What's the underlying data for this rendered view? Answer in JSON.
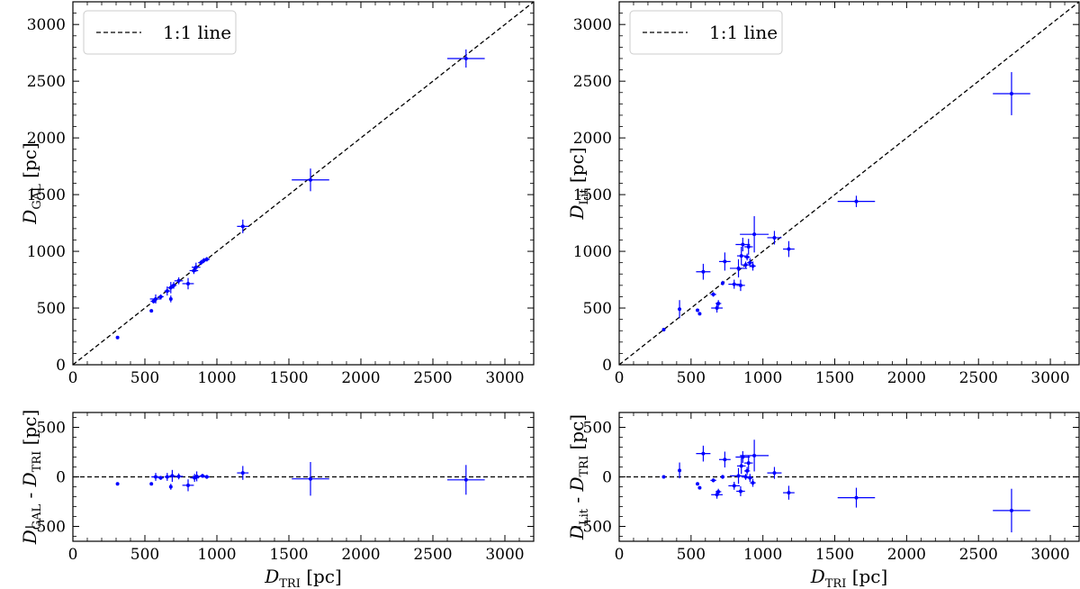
{
  "chart_data": [
    {
      "type": "scatter",
      "panel": "top-left",
      "xlim": [
        0,
        3200
      ],
      "ylim": [
        0,
        3200
      ],
      "xticks": [
        0,
        500,
        1000,
        1500,
        2000,
        2500,
        3000
      ],
      "yticks": [
        0,
        500,
        1000,
        1500,
        2000,
        2500,
        3000
      ],
      "xlabel": "",
      "ylabel": {
        "main": "D",
        "sub": "GAL",
        "unit": " [pc]"
      },
      "reference_line": {
        "label": "1:1 line",
        "style": "dashed",
        "slope": 1
      },
      "legend": "top-left",
      "color": "#0000ff",
      "points": [
        {
          "x": 310,
          "y": 240,
          "xerr": 5,
          "yerr": 5
        },
        {
          "x": 545,
          "y": 475,
          "xerr": 5,
          "yerr": 5
        },
        {
          "x": 560,
          "y": 560,
          "xerr": 20,
          "yerr": 20
        },
        {
          "x": 575,
          "y": 580,
          "xerr": 40,
          "yerr": 40
        },
        {
          "x": 610,
          "y": 600,
          "xerr": 20,
          "yerr": 20
        },
        {
          "x": 655,
          "y": 650,
          "xerr": 20,
          "yerr": 40
        },
        {
          "x": 680,
          "y": 580,
          "xerr": 10,
          "yerr": 30
        },
        {
          "x": 680,
          "y": 680,
          "xerr": 20,
          "yerr": 50
        },
        {
          "x": 700,
          "y": 700,
          "xerr": 20,
          "yerr": 30
        },
        {
          "x": 735,
          "y": 740,
          "xerr": 30,
          "yerr": 30
        },
        {
          "x": 800,
          "y": 715,
          "xerr": 40,
          "yerr": 50
        },
        {
          "x": 840,
          "y": 830,
          "xerr": 30,
          "yerr": 30
        },
        {
          "x": 855,
          "y": 860,
          "xerr": 30,
          "yerr": 40
        },
        {
          "x": 890,
          "y": 900,
          "xerr": 20,
          "yerr": 20
        },
        {
          "x": 910,
          "y": 920,
          "xerr": 20,
          "yerr": 20
        },
        {
          "x": 930,
          "y": 930,
          "xerr": 20,
          "yerr": 20
        },
        {
          "x": 1180,
          "y": 1220,
          "xerr": 40,
          "yerr": 60
        },
        {
          "x": 1650,
          "y": 1630,
          "xerr": 130,
          "yerr": 100
        },
        {
          "x": 2730,
          "y": 2700,
          "xerr": 130,
          "yerr": 80
        }
      ]
    },
    {
      "type": "scatter",
      "panel": "top-right",
      "xlim": [
        0,
        3200
      ],
      "ylim": [
        0,
        3200
      ],
      "xticks": [
        0,
        500,
        1000,
        1500,
        2000,
        2500,
        3000
      ],
      "yticks": [
        0,
        500,
        1000,
        1500,
        2000,
        2500,
        3000
      ],
      "xlabel": "",
      "ylabel": {
        "main": "D",
        "sub": "Lit",
        "unit": " [pc]"
      },
      "reference_line": {
        "label": "1:1 line",
        "style": "dashed",
        "slope": 1
      },
      "legend": "top-left",
      "color": "#0000ff",
      "points": [
        {
          "x": 310,
          "y": 310,
          "xerr": 5,
          "yerr": 5
        },
        {
          "x": 420,
          "y": 490,
          "xerr": 10,
          "yerr": 80
        },
        {
          "x": 545,
          "y": 480,
          "xerr": 5,
          "yerr": 10
        },
        {
          "x": 560,
          "y": 450,
          "xerr": 5,
          "yerr": 10
        },
        {
          "x": 585,
          "y": 820,
          "xerr": 50,
          "yerr": 70
        },
        {
          "x": 655,
          "y": 620,
          "xerr": 20,
          "yerr": 20
        },
        {
          "x": 680,
          "y": 500,
          "xerr": 40,
          "yerr": 40
        },
        {
          "x": 690,
          "y": 540,
          "xerr": 20,
          "yerr": 30
        },
        {
          "x": 720,
          "y": 720,
          "xerr": 10,
          "yerr": 20
        },
        {
          "x": 735,
          "y": 910,
          "xerr": 40,
          "yerr": 80
        },
        {
          "x": 800,
          "y": 710,
          "xerr": 40,
          "yerr": 40
        },
        {
          "x": 830,
          "y": 850,
          "xerr": 60,
          "yerr": 80
        },
        {
          "x": 845,
          "y": 700,
          "xerr": 30,
          "yerr": 50
        },
        {
          "x": 850,
          "y": 960,
          "xerr": 30,
          "yerr": 80
        },
        {
          "x": 860,
          "y": 1060,
          "xerr": 50,
          "yerr": 60
        },
        {
          "x": 880,
          "y": 880,
          "xerr": 30,
          "yerr": 30
        },
        {
          "x": 890,
          "y": 950,
          "xerr": 20,
          "yerr": 30
        },
        {
          "x": 900,
          "y": 1040,
          "xerr": 30,
          "yerr": 70
        },
        {
          "x": 910,
          "y": 900,
          "xerr": 20,
          "yerr": 40
        },
        {
          "x": 930,
          "y": 870,
          "xerr": 20,
          "yerr": 40
        },
        {
          "x": 940,
          "y": 1150,
          "xerr": 100,
          "yerr": 160
        },
        {
          "x": 1080,
          "y": 1120,
          "xerr": 50,
          "yerr": 60
        },
        {
          "x": 1180,
          "y": 1020,
          "xerr": 40,
          "yerr": 70
        },
        {
          "x": 1650,
          "y": 1440,
          "xerr": 130,
          "yerr": 50
        },
        {
          "x": 2730,
          "y": 2390,
          "xerr": 130,
          "yerr": 190
        }
      ]
    },
    {
      "type": "scatter",
      "panel": "bottom-left",
      "xlim": [
        0,
        3200
      ],
      "ylim": [
        -650,
        650
      ],
      "xticks": [
        0,
        500,
        1000,
        1500,
        2000,
        2500,
        3000
      ],
      "yticks": [
        -500,
        0,
        500
      ],
      "xlabel": {
        "main": "D",
        "sub": "TRI",
        "unit": " [pc]"
      },
      "ylabel": {
        "main": "D",
        "sub": "GAL",
        "mid": " - D",
        "sub2": "TRI",
        "unit": " [pc]"
      },
      "reference_line": {
        "label": "",
        "style": "dashed",
        "y": 0
      },
      "color": "#0000ff",
      "points": [
        {
          "x": 310,
          "y": -70,
          "xerr": 5,
          "yerr": 5
        },
        {
          "x": 545,
          "y": -70,
          "xerr": 5,
          "yerr": 5
        },
        {
          "x": 575,
          "y": 0,
          "xerr": 30,
          "yerr": 40
        },
        {
          "x": 610,
          "y": -10,
          "xerr": 20,
          "yerr": 20
        },
        {
          "x": 655,
          "y": 0,
          "xerr": 20,
          "yerr": 40
        },
        {
          "x": 680,
          "y": -100,
          "xerr": 10,
          "yerr": 30
        },
        {
          "x": 690,
          "y": 10,
          "xerr": 20,
          "yerr": 60
        },
        {
          "x": 735,
          "y": 5,
          "xerr": 30,
          "yerr": 30
        },
        {
          "x": 800,
          "y": -85,
          "xerr": 40,
          "yerr": 60
        },
        {
          "x": 845,
          "y": -10,
          "xerr": 30,
          "yerr": 40
        },
        {
          "x": 860,
          "y": 5,
          "xerr": 30,
          "yerr": 50
        },
        {
          "x": 900,
          "y": 10,
          "xerr": 20,
          "yerr": 20
        },
        {
          "x": 930,
          "y": 0,
          "xerr": 20,
          "yerr": 20
        },
        {
          "x": 1180,
          "y": 40,
          "xerr": 40,
          "yerr": 70
        },
        {
          "x": 1650,
          "y": -20,
          "xerr": 130,
          "yerr": 170
        },
        {
          "x": 2730,
          "y": -30,
          "xerr": 130,
          "yerr": 150
        }
      ]
    },
    {
      "type": "scatter",
      "panel": "bottom-right",
      "xlim": [
        0,
        3200
      ],
      "ylim": [
        -650,
        650
      ],
      "xticks": [
        0,
        500,
        1000,
        1500,
        2000,
        2500,
        3000
      ],
      "yticks": [
        -500,
        0,
        500
      ],
      "xlabel": {
        "main": "D",
        "sub": "TRI",
        "unit": " [pc]"
      },
      "ylabel": {
        "main": "D",
        "sub": "Lit",
        "mid": " - D",
        "sub2": "TRI",
        "unit": " [pc]"
      },
      "reference_line": {
        "label": "",
        "style": "dashed",
        "y": 0
      },
      "color": "#0000ff",
      "points": [
        {
          "x": 310,
          "y": 0,
          "xerr": 5,
          "yerr": 5
        },
        {
          "x": 420,
          "y": 65,
          "xerr": 10,
          "yerr": 80
        },
        {
          "x": 545,
          "y": -70,
          "xerr": 5,
          "yerr": 10
        },
        {
          "x": 560,
          "y": -110,
          "xerr": 5,
          "yerr": 10
        },
        {
          "x": 585,
          "y": 235,
          "xerr": 50,
          "yerr": 80
        },
        {
          "x": 655,
          "y": -35,
          "xerr": 20,
          "yerr": 20
        },
        {
          "x": 680,
          "y": -180,
          "xerr": 40,
          "yerr": 40
        },
        {
          "x": 690,
          "y": -150,
          "xerr": 20,
          "yerr": 30
        },
        {
          "x": 720,
          "y": 0,
          "xerr": 10,
          "yerr": 20
        },
        {
          "x": 735,
          "y": 175,
          "xerr": 40,
          "yerr": 80
        },
        {
          "x": 800,
          "y": -90,
          "xerr": 40,
          "yerr": 40
        },
        {
          "x": 830,
          "y": 10,
          "xerr": 60,
          "yerr": 80
        },
        {
          "x": 845,
          "y": -145,
          "xerr": 30,
          "yerr": 50
        },
        {
          "x": 850,
          "y": 110,
          "xerr": 30,
          "yerr": 80
        },
        {
          "x": 860,
          "y": 200,
          "xerr": 50,
          "yerr": 60
        },
        {
          "x": 880,
          "y": 0,
          "xerr": 30,
          "yerr": 30
        },
        {
          "x": 890,
          "y": 60,
          "xerr": 20,
          "yerr": 40
        },
        {
          "x": 900,
          "y": 140,
          "xerr": 30,
          "yerr": 70
        },
        {
          "x": 910,
          "y": -10,
          "xerr": 20,
          "yerr": 40
        },
        {
          "x": 930,
          "y": -60,
          "xerr": 20,
          "yerr": 40
        },
        {
          "x": 940,
          "y": 215,
          "xerr": 100,
          "yerr": 160
        },
        {
          "x": 1080,
          "y": 40,
          "xerr": 50,
          "yerr": 60
        },
        {
          "x": 1180,
          "y": -160,
          "xerr": 40,
          "yerr": 70
        },
        {
          "x": 1650,
          "y": -210,
          "xerr": 130,
          "yerr": 100
        },
        {
          "x": 2730,
          "y": -340,
          "xerr": 130,
          "yerr": 220
        }
      ]
    }
  ]
}
